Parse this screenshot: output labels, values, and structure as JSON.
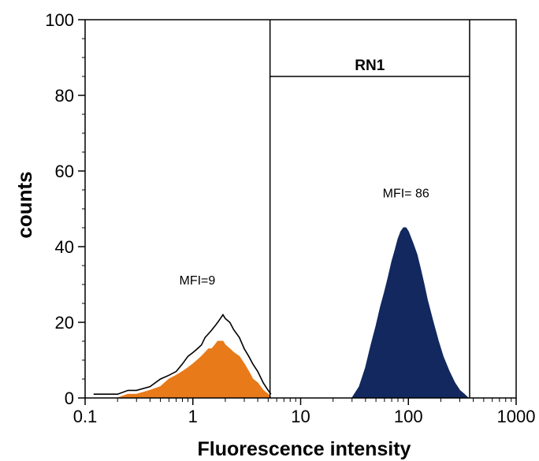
{
  "chart_data": {
    "type": "area",
    "title": "",
    "xlabel": "Fluorescence intensity",
    "ylabel": "counts",
    "x_scale": "log",
    "xlim": [
      0.1,
      1000
    ],
    "ylim": [
      0,
      100
    ],
    "x_ticks": [
      0.1,
      1,
      10,
      100,
      1000
    ],
    "x_tick_labels": [
      "0.1",
      "1",
      "10",
      "100",
      "1000"
    ],
    "y_ticks": [
      0,
      20,
      40,
      60,
      80,
      100
    ],
    "y_tick_labels": [
      "0",
      "20",
      "40",
      "60",
      "80",
      "100"
    ],
    "series": [
      {
        "style": "outline",
        "color": "#000000",
        "x": [
          0.12,
          0.15,
          0.2,
          0.25,
          0.3,
          0.4,
          0.5,
          0.6,
          0.7,
          0.8,
          0.9,
          1.0,
          1.1,
          1.2,
          1.3,
          1.4,
          1.5,
          1.6,
          1.7,
          1.8,
          1.9,
          2.0,
          2.2,
          2.4,
          2.7,
          3.0,
          3.3,
          3.6,
          4.0,
          4.5,
          5.0,
          5.3
        ],
        "y": [
          1,
          1,
          1,
          2,
          2,
          3,
          5,
          6,
          7,
          9,
          11,
          12,
          13,
          14,
          16,
          17,
          18,
          19,
          20,
          21,
          22,
          21,
          20,
          18,
          16,
          13,
          11,
          9,
          7,
          4,
          2,
          1
        ]
      },
      {
        "style": "filled",
        "color": "#E87A1A",
        "x": [
          0.12,
          0.15,
          0.2,
          0.25,
          0.3,
          0.4,
          0.5,
          0.6,
          0.7,
          0.8,
          0.9,
          1.0,
          1.1,
          1.2,
          1.3,
          1.4,
          1.5,
          1.6,
          1.7,
          1.8,
          1.9,
          2.0,
          2.2,
          2.4,
          2.7,
          3.0,
          3.3,
          3.6,
          4.0,
          4.5,
          5.0,
          5.3
        ],
        "y": [
          0,
          0,
          0,
          1,
          1,
          2,
          3,
          5,
          6,
          7,
          8,
          9,
          10,
          11,
          12,
          13,
          13,
          14,
          15,
          15,
          15,
          14,
          13,
          12,
          11,
          9,
          7,
          5,
          4,
          2,
          1,
          0
        ]
      },
      {
        "style": "filled",
        "color": "#12285E",
        "x": [
          30,
          35,
          40,
          45,
          50,
          55,
          60,
          65,
          70,
          75,
          80,
          85,
          90,
          95,
          100,
          110,
          120,
          130,
          140,
          150,
          170,
          190,
          210,
          240,
          270,
          300,
          330,
          360
        ],
        "y": [
          0,
          3,
          8,
          14,
          19,
          24,
          28,
          32,
          36,
          39,
          42,
          44,
          45,
          45,
          44,
          41,
          38,
          34,
          30,
          26,
          20,
          15,
          11,
          7,
          4,
          2,
          1,
          0
        ]
      }
    ],
    "gates": [
      {
        "x": 5.2
      },
      {
        "x": 370
      }
    ],
    "gate_region": {
      "label": "RN1",
      "x_start": 5.2,
      "x_end": 370,
      "y": 85
    },
    "annotations": [
      {
        "text": "MFI=9",
        "x": 1.1,
        "y": 30
      },
      {
        "text": "MFI= 86",
        "x": 95,
        "y": 53
      }
    ]
  }
}
